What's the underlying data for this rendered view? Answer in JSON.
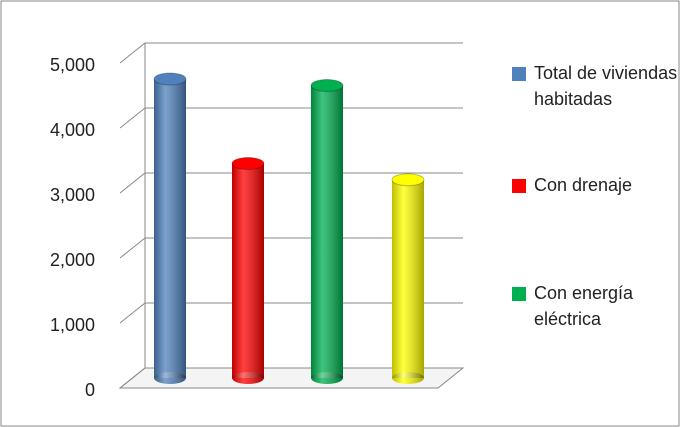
{
  "chart_data": {
    "type": "bar3d",
    "series": [
      {
        "name": "Total de viviendas habitadas",
        "color": "#4f81bd",
        "values": [
          4600
        ]
      },
      {
        "name": "Con drenaje",
        "color": "#ff0000",
        "values": [
          3300
        ]
      },
      {
        "name": "Con energía eléctrica",
        "color": "#00b050",
        "values": [
          4500
        ]
      },
      {
        "color": "#ffff00",
        "values": [
          3050
        ]
      }
    ],
    "ylim": [
      0,
      5000
    ],
    "yticks": [
      0,
      {
        "value": 1000,
        "label": "1,000"
      },
      {
        "value": 2000,
        "label": "2,000"
      },
      {
        "value": 3000,
        "label": "3,000"
      },
      {
        "value": 4000,
        "label": "4,000"
      },
      {
        "value": 5000,
        "label": "5,000"
      }
    ],
    "grid": true
  }
}
